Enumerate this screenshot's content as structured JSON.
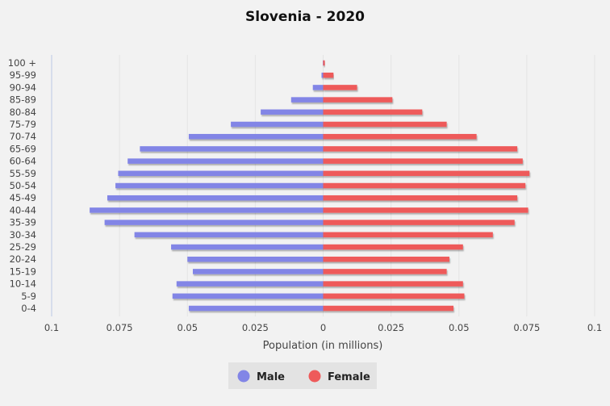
{
  "chart_data": {
    "type": "bar",
    "orientation": "horizontal-population-pyramid",
    "title": "Slovenia - 2020",
    "xlabel": "Population (in millions)",
    "ylabel": "",
    "xlim": [
      -0.1,
      0.1
    ],
    "x_ticks": [
      -0.1,
      -0.075,
      -0.05,
      -0.025,
      0,
      0.025,
      0.05,
      0.075,
      0.1
    ],
    "x_tick_labels": [
      "0.1",
      "0.075",
      "0.05",
      "0.025",
      "0",
      "0.025",
      "0.05",
      "0.075",
      "0.1"
    ],
    "categories": [
      "0-4",
      "5-9",
      "10-14",
      "15-19",
      "20-24",
      "25-29",
      "30-34",
      "35-39",
      "40-44",
      "45-49",
      "50-54",
      "55-59",
      "60-64",
      "65-69",
      "70-74",
      "75-79",
      "80-84",
      "85-89",
      "90-94",
      "95-99",
      "100 +"
    ],
    "series": [
      {
        "name": "Male",
        "color": "#8285e6",
        "values": [
          0.0495,
          0.0555,
          0.054,
          0.048,
          0.05,
          0.056,
          0.0695,
          0.0805,
          0.086,
          0.0795,
          0.0765,
          0.0755,
          0.072,
          0.0675,
          0.0495,
          0.034,
          0.023,
          0.0118,
          0.0038,
          0.0006,
          0.0001
        ]
      },
      {
        "name": "Female",
        "color": "#ee5a5a",
        "values": [
          0.048,
          0.052,
          0.0515,
          0.0455,
          0.0465,
          0.0515,
          0.0625,
          0.0705,
          0.0755,
          0.0715,
          0.0745,
          0.076,
          0.0735,
          0.0715,
          0.0565,
          0.0455,
          0.0365,
          0.0255,
          0.0125,
          0.0038,
          0.0006
        ]
      }
    ],
    "grid": true,
    "legend_position": "bottom-center"
  }
}
